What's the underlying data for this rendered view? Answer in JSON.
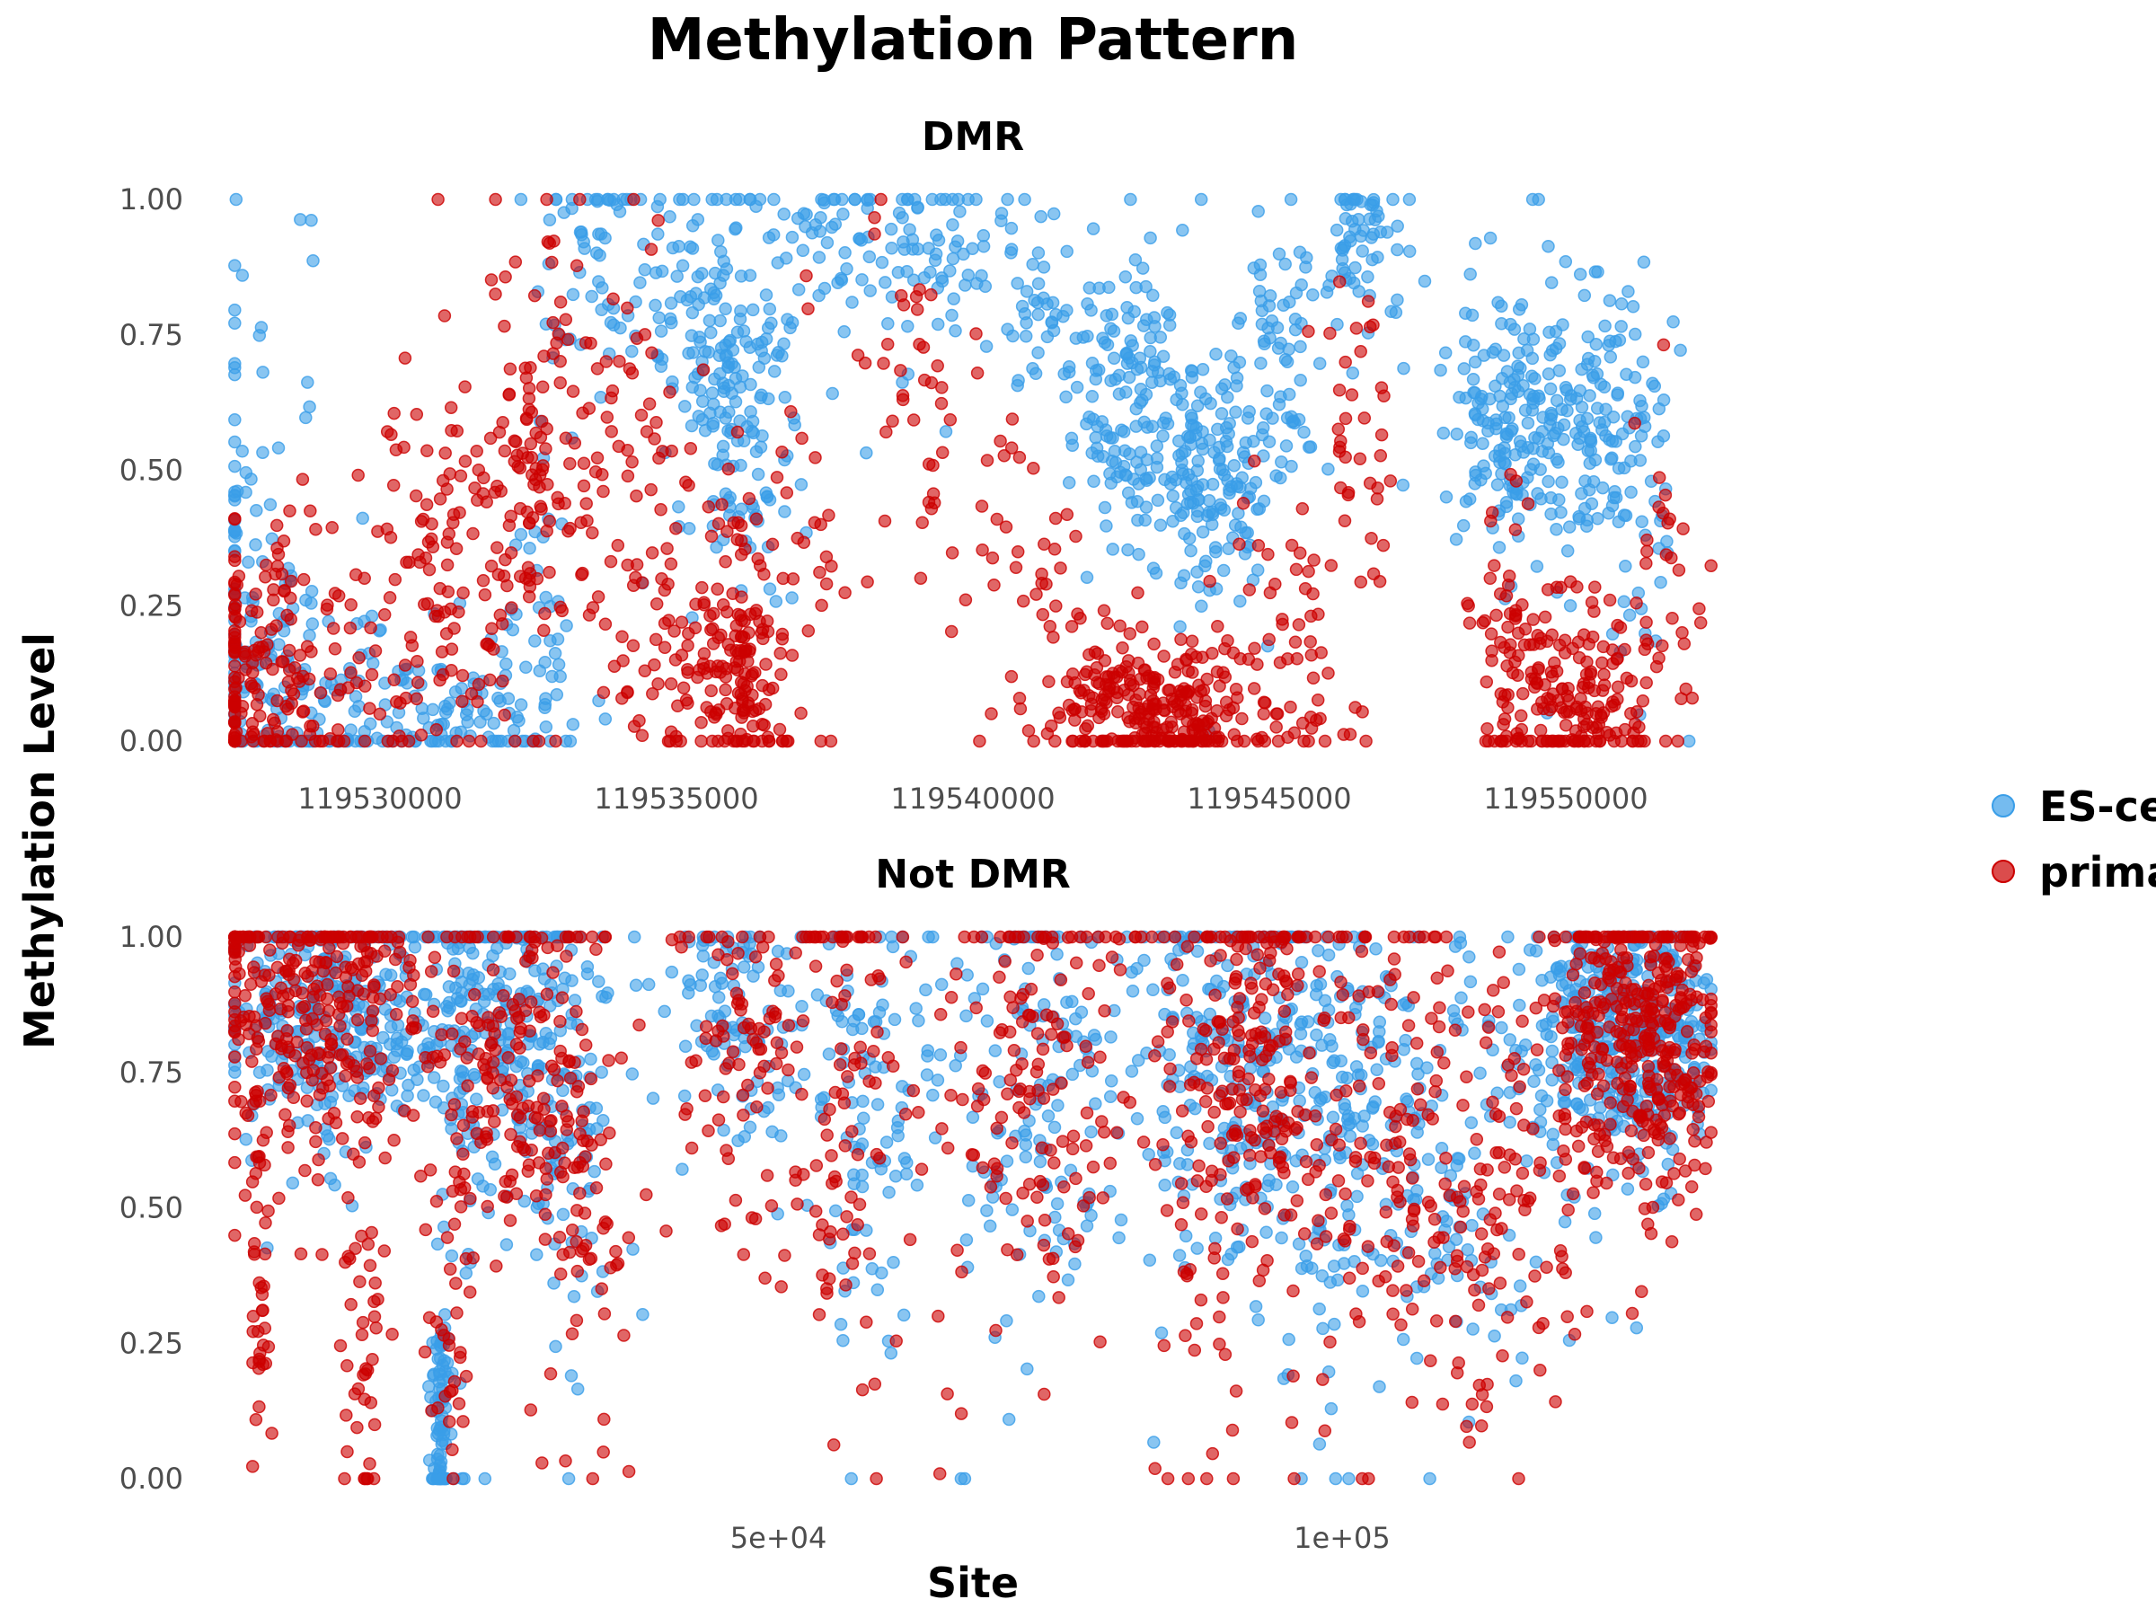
{
  "chart_data": {
    "type": "scatter",
    "title": "Methylation Pattern",
    "xlabel": "Site",
    "ylabel": "Methylation Level",
    "legend": {
      "placement": "right",
      "entries": [
        {
          "name": "ES-cell",
          "color": "#3a9ee8"
        },
        {
          "name": "primary",
          "color": "#cc0000"
        }
      ]
    },
    "panels": [
      {
        "name": "DMR",
        "xlim": [
          119527500,
          119552500
        ],
        "ylim": [
          0,
          1
        ],
        "x_ticks": [
          119530000,
          119535000,
          119540000,
          119545000,
          119550000
        ],
        "x_tick_labels": [
          "119530000",
          "119535000",
          "119540000",
          "119545000",
          "119550000"
        ],
        "y_ticks": [
          0,
          0.25,
          0.5,
          0.75,
          1
        ],
        "y_tick_labels": [
          "0.00",
          "0.25",
          "0.50",
          "0.75",
          "1.00"
        ],
        "clusters": {
          "ES-cell": [
            [
              119527650,
              1.0,
              0.38,
              0.3,
              90
            ],
            [
              119528700,
              1.4,
              0.1,
              0.12,
              90
            ],
            [
              119531000,
              1.6,
              0.05,
              0.07,
              100
            ],
            [
              119532700,
              0.7,
              0.15,
              0.2,
              50
            ],
            [
              119533700,
              1.2,
              0.88,
              0.1,
              60
            ],
            [
              119535600,
              1.2,
              0.85,
              0.12,
              80
            ],
            [
              119536100,
              0.9,
              0.6,
              0.15,
              140
            ],
            [
              119537900,
              1.2,
              0.92,
              0.07,
              60
            ],
            [
              119539700,
              1.0,
              0.9,
              0.08,
              50
            ],
            [
              119541200,
              0.8,
              0.8,
              0.1,
              40
            ],
            [
              119542600,
              1.0,
              0.62,
              0.12,
              140
            ],
            [
              119544000,
              1.0,
              0.5,
              0.12,
              160
            ],
            [
              119545300,
              0.6,
              0.72,
              0.12,
              60
            ],
            [
              119546400,
              0.4,
              0.92,
              0.06,
              45
            ],
            [
              119547000,
              0.5,
              0.88,
              0.08,
              20
            ],
            [
              119548400,
              0.4,
              0.6,
              0.15,
              30
            ],
            [
              119549000,
              0.5,
              0.6,
              0.12,
              80
            ],
            [
              119550100,
              1.1,
              0.58,
              0.13,
              170
            ],
            [
              119551300,
              0.5,
              0.4,
              0.22,
              40
            ]
          ],
          "primary": [
            [
              119527650,
              1.0,
              0.15,
              0.12,
              110
            ],
            [
              119528800,
              1.3,
              0.12,
              0.13,
              90
            ],
            [
              119531200,
              1.4,
              0.28,
              0.2,
              120
            ],
            [
              119532500,
              0.6,
              0.55,
              0.18,
              90
            ],
            [
              119533800,
              0.9,
              0.55,
              0.22,
              70
            ],
            [
              119535000,
              0.9,
              0.25,
              0.18,
              70
            ],
            [
              119536000,
              0.7,
              0.1,
              0.1,
              120
            ],
            [
              119537000,
              1.0,
              0.35,
              0.2,
              40
            ],
            [
              119538900,
              1.2,
              0.62,
              0.15,
              40
            ],
            [
              119540800,
              1.2,
              0.3,
              0.2,
              40
            ],
            [
              119542300,
              0.8,
              0.08,
              0.08,
              120
            ],
            [
              119543600,
              0.9,
              0.05,
              0.06,
              150
            ],
            [
              119545300,
              0.7,
              0.15,
              0.15,
              60
            ],
            [
              119546500,
              0.5,
              0.55,
              0.25,
              40
            ],
            [
              119549000,
              0.5,
              0.18,
              0.12,
              50
            ],
            [
              119550200,
              1.1,
              0.08,
              0.08,
              170
            ],
            [
              119551700,
              0.6,
              0.25,
              0.15,
              30
            ]
          ]
        }
      },
      {
        "name": "Not DMR",
        "xlim": [
          1500,
          133000
        ],
        "ylim": [
          0,
          1
        ],
        "x_ticks": [
          50000,
          100000
        ],
        "x_tick_labels": [
          "5e+04",
          "1e+05"
        ],
        "y_ticks": [
          0,
          0.25,
          0.5,
          0.75,
          1
        ],
        "y_tick_labels": [
          "0.00",
          "0.25",
          "0.50",
          "0.75",
          "1.00"
        ],
        "clusters": {
          "ES-cell": [
            [
              10000,
              8500,
              0.88,
              0.12,
              320
            ],
            [
              22000,
              3000,
              0.85,
              0.15,
              80
            ],
            [
              21000,
              2000,
              0.3,
              0.25,
              20
            ],
            [
              20000,
              600,
              0.1,
              0.1,
              80
            ],
            [
              27000,
              5000,
              0.82,
              0.15,
              160
            ],
            [
              32000,
              3000,
              0.6,
              0.25,
              60
            ],
            [
              46000,
              6000,
              0.85,
              0.12,
              100
            ],
            [
              58000,
              5000,
              0.72,
              0.2,
              100
            ],
            [
              72000,
              8000,
              0.72,
              0.2,
              150
            ],
            [
              90000,
              8000,
              0.78,
              0.2,
              240
            ],
            [
              100000,
              6000,
              0.62,
              0.22,
              140
            ],
            [
              110000,
              8000,
              0.62,
              0.22,
              120
            ],
            [
              123000,
              5000,
              0.84,
              0.12,
              220
            ],
            [
              128000,
              4000,
              0.82,
              0.12,
              180
            ]
          ],
          "primary": [
            [
              9000,
              8500,
              0.86,
              0.15,
              320
            ],
            [
              4000,
              800,
              0.35,
              0.2,
              40
            ],
            [
              13000,
              1500,
              0.25,
              0.18,
              40
            ],
            [
              21000,
              1800,
              0.3,
              0.2,
              40
            ],
            [
              27000,
              5000,
              0.8,
              0.18,
              160
            ],
            [
              33000,
              3000,
              0.55,
              0.22,
              60
            ],
            [
              47000,
              6000,
              0.82,
              0.18,
              100
            ],
            [
              56000,
              4000,
              0.65,
              0.25,
              80
            ],
            [
              73000,
              8000,
              0.72,
              0.22,
              150
            ],
            [
              88000,
              4000,
              0.35,
              0.22,
              40
            ],
            [
              92000,
              7000,
              0.78,
              0.2,
              220
            ],
            [
              105000,
              8000,
              0.62,
              0.22,
              140
            ],
            [
              114000,
              6000,
              0.55,
              0.25,
              80
            ],
            [
              124000,
              5000,
              0.82,
              0.15,
              220
            ],
            [
              129000,
              4000,
              0.8,
              0.15,
              180
            ]
          ]
        }
      }
    ]
  }
}
